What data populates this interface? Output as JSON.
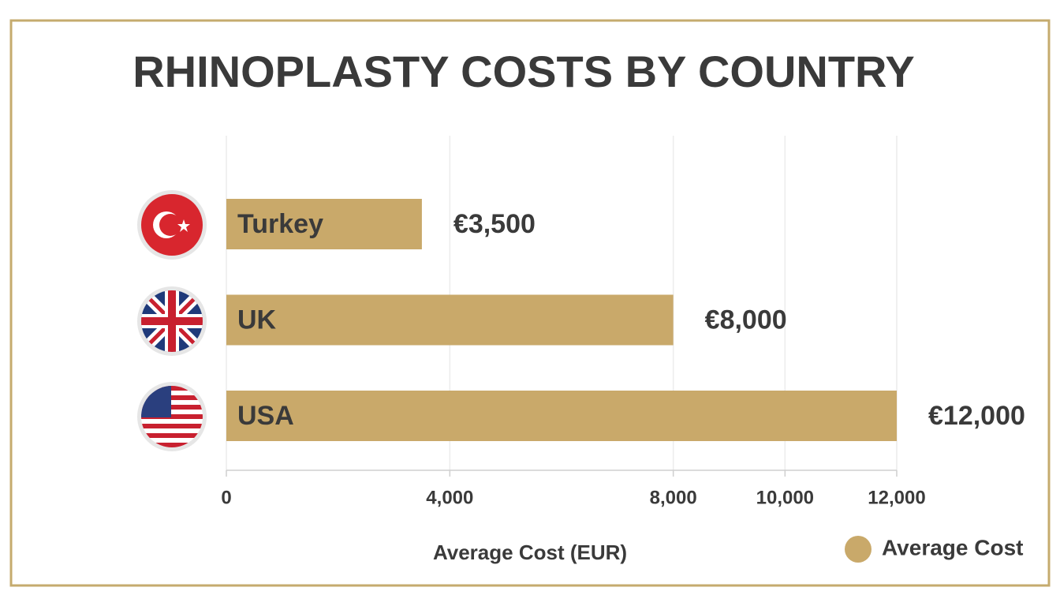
{
  "chart_data": {
    "type": "bar",
    "orientation": "horizontal",
    "title": "RHINOPLASTY COSTS BY COUNTRY",
    "categories": [
      "Turkey",
      "UK",
      "USA"
    ],
    "series": [
      {
        "name": "Average Cost",
        "color": "#c9a96a",
        "values": [
          3500,
          8000,
          12000
        ],
        "value_labels": [
          "€3,500",
          "€8,000",
          "€12,000"
        ]
      }
    ],
    "x_label": "Average Cost (EUR)",
    "xlim": [
      0,
      12000
    ],
    "xticks": [
      0,
      {
        "value": 4000,
        "label": "4,000"
      },
      {
        "value": 8000,
        "label": "8,000"
      },
      {
        "value": 10000,
        "label": "10,000"
      },
      {
        "value": 12000,
        "label": "12,000"
      }
    ],
    "grid": true,
    "legend": "bottom-right"
  }
}
